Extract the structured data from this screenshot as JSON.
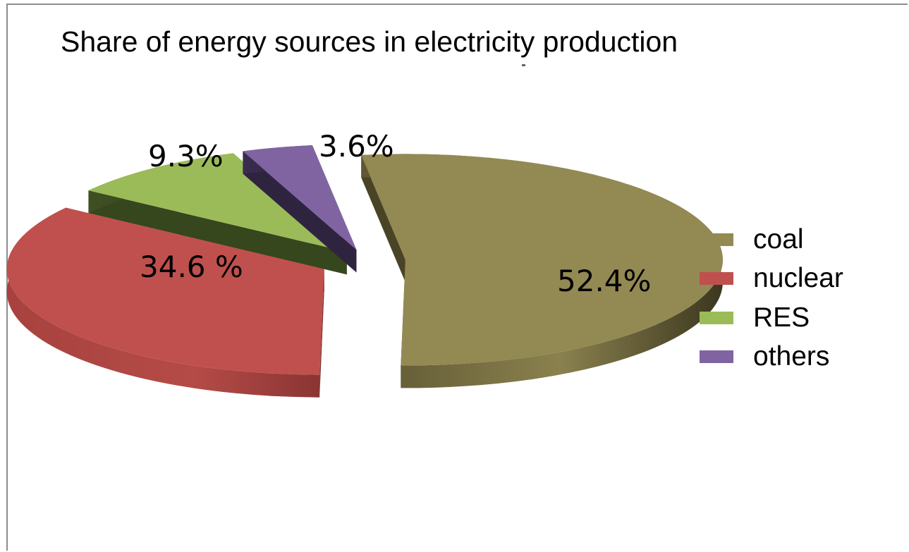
{
  "chart_data": {
    "type": "pie",
    "title": "Share of energy sources in electricity production",
    "slices": [
      {
        "name": "coal",
        "value": 52.4,
        "label": "52.4%",
        "color": "#938953"
      },
      {
        "name": "nuclear",
        "value": 34.6,
        "label": "34.6 %",
        "color": "#c0504d"
      },
      {
        "name": "RES",
        "value": 9.3,
        "label": "9.3%",
        "color": "#9bbb59"
      },
      {
        "name": "others",
        "value": 3.6,
        "label": "3.6%",
        "color": "#8064a2"
      }
    ],
    "legend_position": "right",
    "style": "3d exploded"
  }
}
